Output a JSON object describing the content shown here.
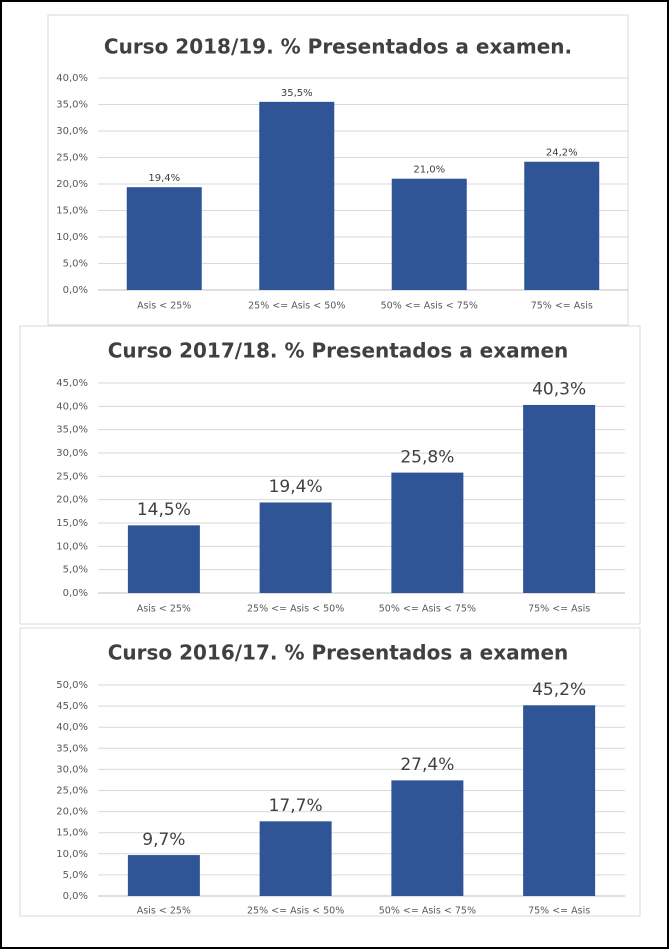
{
  "chart_data": [
    {
      "type": "bar",
      "title": "Curso 2018/19. % Presentados a examen.",
      "categories": [
        "Asis < 25%",
        "25% <= Asis < 50%",
        "50% <= Asis < 75%",
        "75% <= Asis"
      ],
      "values": [
        19.4,
        35.5,
        21.0,
        24.2
      ],
      "value_labels": [
        "19,4%",
        "35,5%",
        "21,0%",
        "24,2%"
      ],
      "color": "#2f5597",
      "ylim": [
        0,
        40
      ],
      "yticks": [
        {
          "value": 0,
          "label": "0,0%"
        },
        {
          "value": 5,
          "label": "5,0%"
        },
        {
          "value": 10,
          "label": "10,0%"
        },
        {
          "value": 15,
          "label": "15,0%"
        },
        {
          "value": 20,
          "label": "20,0%"
        },
        {
          "value": 25,
          "label": "25,0%"
        },
        {
          "value": 30,
          "label": "30,0%"
        },
        {
          "value": 35,
          "label": "35,0%"
        },
        {
          "value": 40,
          "label": "40,0%"
        }
      ],
      "grid": true
    },
    {
      "type": "bar",
      "title": "Curso 2017/18. % Presentados a examen",
      "categories": [
        "Asis < 25%",
        "25% <= Asis < 50%",
        "50% <= Asis < 75%",
        "75% <= Asis"
      ],
      "values": [
        14.5,
        19.4,
        25.8,
        40.3
      ],
      "value_labels": [
        "14,5%",
        "19,4%",
        "25,8%",
        "40,3%"
      ],
      "color": "#2f5597",
      "ylim": [
        0,
        45
      ],
      "yticks": [
        {
          "value": 0,
          "label": "0,0%"
        },
        {
          "value": 5,
          "label": "5,0%"
        },
        {
          "value": 10,
          "label": "10,0%"
        },
        {
          "value": 15,
          "label": "15,0%"
        },
        {
          "value": 20,
          "label": "20,0%"
        },
        {
          "value": 25,
          "label": "25,0%"
        },
        {
          "value": 30,
          "label": "30,0%"
        },
        {
          "value": 35,
          "label": "35,0%"
        },
        {
          "value": 40,
          "label": "40,0%"
        },
        {
          "value": 45,
          "label": "45,0%"
        }
      ],
      "grid": true
    },
    {
      "type": "bar",
      "title": "Curso 2016/17. % Presentados a examen",
      "categories": [
        "Asis < 25%",
        "25% <= Asis < 50%",
        "50% <= Asis < 75%",
        "75% <= Asis"
      ],
      "values": [
        9.7,
        17.7,
        27.4,
        45.2
      ],
      "value_labels": [
        "9,7%",
        "17,7%",
        "27,4%",
        "45,2%"
      ],
      "color": "#2f5597",
      "ylim": [
        0,
        50
      ],
      "yticks": [
        {
          "value": 0,
          "label": "0,0%"
        },
        {
          "value": 5,
          "label": "5,0%"
        },
        {
          "value": 10,
          "label": "10,0%"
        },
        {
          "value": 15,
          "label": "15,0%"
        },
        {
          "value": 20,
          "label": "20,0%"
        },
        {
          "value": 25,
          "label": "25,0%"
        },
        {
          "value": 30,
          "label": "30,0%"
        },
        {
          "value": 35,
          "label": "35,0%"
        },
        {
          "value": 40,
          "label": "40,0%"
        },
        {
          "value": 45,
          "label": "45,0%"
        },
        {
          "value": 50,
          "label": "50,0%"
        }
      ],
      "grid": true
    }
  ]
}
